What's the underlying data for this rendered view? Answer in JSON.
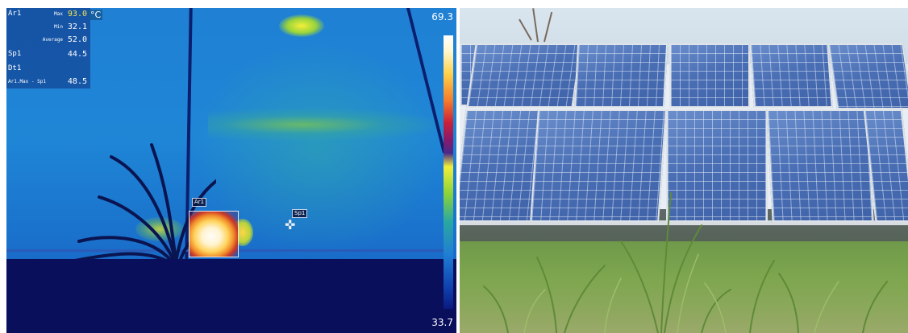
{
  "thermal": {
    "overlay": {
      "area": "Ar1",
      "unit": "°C",
      "rows": [
        {
          "a": "Ar1",
          "b": "Max",
          "v": "93.0"
        },
        {
          "a": "",
          "b": "Min",
          "v": "32.1"
        },
        {
          "a": "",
          "b": "Average",
          "v": "52.0"
        },
        {
          "a": "Sp1",
          "b": "",
          "v": "44.5"
        },
        {
          "a": "Dt1",
          "b": "",
          "v": ""
        },
        {
          "a": "Ar1.Max - Sp1",
          "b": "",
          "v": "48.5"
        }
      ]
    },
    "scale": {
      "max": "69.3",
      "min": "33.7"
    },
    "labels": {
      "area": "Ar1",
      "spot": "Sp1"
    }
  },
  "colors": {
    "thermal_background": "#1f86d6",
    "hot_spot": "#fff3d0",
    "panel_blue": "#4a6fb5",
    "grass_green": "#7ea64f"
  }
}
